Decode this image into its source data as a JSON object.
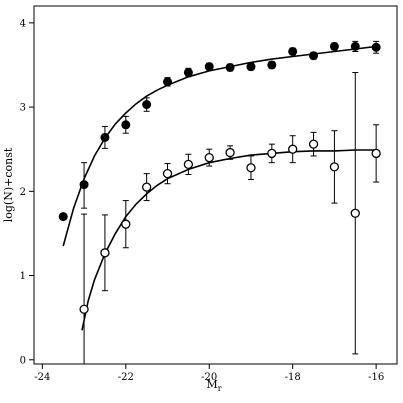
{
  "chart_data": {
    "type": "scatter",
    "title": "",
    "xlabel": {
      "main": "M",
      "sub": "r"
    },
    "ylabel": "log(N)+const",
    "xlim": [
      -24.2,
      -15.5
    ],
    "ylim": [
      -0.05,
      4.2
    ],
    "xticks": [
      -24,
      -22,
      -20,
      -18,
      -16
    ],
    "xtick_labels": [
      "-24",
      "-22",
      "-20",
      "-18",
      "-16"
    ],
    "yticks": [
      0,
      1,
      2,
      3,
      4
    ],
    "ytick_labels": [
      "0",
      "1",
      "2",
      "3",
      "4"
    ],
    "grid": false,
    "series": [
      {
        "marker": "filled-circle",
        "color": "#000000",
        "points": [
          {
            "x": -23.5,
            "y": 1.7,
            "err": [
              0,
              0
            ]
          },
          {
            "x": -23.0,
            "y": 2.08,
            "err": [
              0.28,
              0.26
            ]
          },
          {
            "x": -22.5,
            "y": 2.64,
            "err": [
              0.13,
              0.13
            ]
          },
          {
            "x": -22.0,
            "y": 2.79,
            "err": [
              0.1,
              0.1
            ]
          },
          {
            "x": -21.5,
            "y": 3.03,
            "err": [
              0.08,
              0.08
            ]
          },
          {
            "x": -21.0,
            "y": 3.3,
            "err": [
              0.05,
              0.05
            ]
          },
          {
            "x": -20.5,
            "y": 3.41,
            "err": [
              0.05,
              0.05
            ]
          },
          {
            "x": -20.0,
            "y": 3.48,
            "err": [
              0.04,
              0.04
            ]
          },
          {
            "x": -19.5,
            "y": 3.47,
            "err": [
              0.04,
              0.04
            ]
          },
          {
            "x": -19.0,
            "y": 3.48,
            "err": [
              0.04,
              0.04
            ]
          },
          {
            "x": -18.5,
            "y": 3.5,
            "err": [
              0.04,
              0.04
            ]
          },
          {
            "x": -18.0,
            "y": 3.66,
            "err": [
              0.04,
              0.04
            ]
          },
          {
            "x": -17.5,
            "y": 3.61,
            "err": [
              0.04,
              0.04
            ]
          },
          {
            "x": -17.0,
            "y": 3.72,
            "err": [
              0.04,
              0.04
            ]
          },
          {
            "x": -16.5,
            "y": 3.72,
            "err": [
              0.06,
              0.06
            ]
          },
          {
            "x": -16.0,
            "y": 3.71,
            "err": [
              0.07,
              0.07
            ]
          }
        ],
        "fit": {
          "x": [
            -23.5,
            -23.25,
            -23.0,
            -22.75,
            -22.5,
            -22.25,
            -22.0,
            -21.75,
            -21.5,
            -21.25,
            -21.0,
            -20.5,
            -20.0,
            -19.5,
            -19.0,
            -18.5,
            -18.0,
            -17.5,
            -17.0,
            -16.5,
            -16.0
          ],
          "y": [
            1.35,
            1.8,
            2.15,
            2.42,
            2.63,
            2.8,
            2.93,
            3.04,
            3.13,
            3.2,
            3.26,
            3.36,
            3.43,
            3.48,
            3.53,
            3.57,
            3.6,
            3.63,
            3.66,
            3.69,
            3.72
          ]
        }
      },
      {
        "marker": "open-circle",
        "color": "#000000",
        "points": [
          {
            "x": -23.0,
            "y": 0.6,
            "err": [
              1.13,
              1.13
            ]
          },
          {
            "x": -22.5,
            "y": 1.27,
            "err": [
              0.45,
              0.45
            ]
          },
          {
            "x": -22.0,
            "y": 1.61,
            "err": [
              0.28,
              0.28
            ]
          },
          {
            "x": -21.5,
            "y": 2.05,
            "err": [
              0.16,
              0.16
            ]
          },
          {
            "x": -21.0,
            "y": 2.21,
            "err": [
              0.12,
              0.12
            ]
          },
          {
            "x": -20.5,
            "y": 2.32,
            "err": [
              0.12,
              0.12
            ]
          },
          {
            "x": -20.0,
            "y": 2.4,
            "err": [
              0.1,
              0.1
            ]
          },
          {
            "x": -19.5,
            "y": 2.46,
            "err": [
              0.08,
              0.08
            ]
          },
          {
            "x": -19.0,
            "y": 2.28,
            "err": [
              0.14,
              0.14
            ]
          },
          {
            "x": -18.5,
            "y": 2.45,
            "err": [
              0.11,
              0.11
            ]
          },
          {
            "x": -18.0,
            "y": 2.5,
            "err": [
              0.16,
              0.16
            ]
          },
          {
            "x": -17.5,
            "y": 2.56,
            "err": [
              0.14,
              0.14
            ]
          },
          {
            "x": -17.0,
            "y": 2.29,
            "err": [
              0.43,
              0.43
            ]
          },
          {
            "x": -16.5,
            "y": 1.74,
            "err": [
              1.67,
              1.67
            ]
          },
          {
            "x": -16.0,
            "y": 2.45,
            "err": [
              0.34,
              0.34
            ]
          }
        ],
        "fit": {
          "x": [
            -23.05,
            -22.9,
            -22.75,
            -22.5,
            -22.25,
            -22.0,
            -21.75,
            -21.5,
            -21.25,
            -21.0,
            -20.5,
            -20.0,
            -19.5,
            -19.0,
            -18.5,
            -18.0,
            -17.5,
            -17.0,
            -16.5,
            -16.0
          ],
          "y": [
            0.35,
            0.7,
            0.95,
            1.26,
            1.5,
            1.7,
            1.85,
            1.97,
            2.07,
            2.15,
            2.26,
            2.34,
            2.39,
            2.43,
            2.45,
            2.47,
            2.48,
            2.48,
            2.49,
            2.49
          ]
        }
      }
    ]
  }
}
